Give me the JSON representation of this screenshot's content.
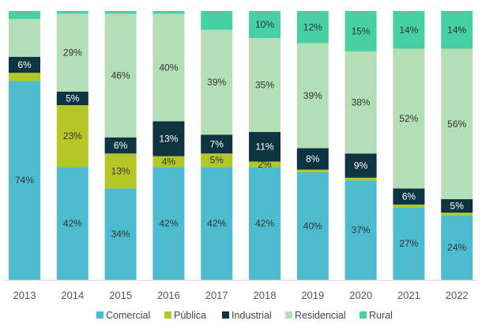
{
  "chart_data": {
    "type": "bar",
    "stacked": true,
    "percent": true,
    "title": "",
    "xlabel": "",
    "ylabel": "",
    "ylim": [
      0,
      100
    ],
    "grid": false,
    "legend_position": "bottom",
    "categories": [
      "2013",
      "2014",
      "2015",
      "2016",
      "2017",
      "2018",
      "2019",
      "2020",
      "2021",
      "2022"
    ],
    "series": [
      {
        "name": "Comercial",
        "color": "#4dbccf",
        "values": [
          74,
          42,
          34,
          42,
          42,
          42,
          40,
          37,
          27,
          24
        ],
        "labels": [
          "74%",
          "42%",
          "34%",
          "42%",
          "42%",
          "42%",
          "40%",
          "37%",
          "27%",
          "24%"
        ]
      },
      {
        "name": "Pública",
        "color": "#b5c727",
        "values": [
          3,
          23,
          13,
          4,
          5,
          2,
          1,
          1,
          1,
          1
        ],
        "labels": [
          "",
          "23%",
          "13%",
          "4%",
          "5%",
          "2%",
          "",
          "",
          "",
          ""
        ]
      },
      {
        "name": "Industrial",
        "color": "#0d3440",
        "values": [
          6,
          5,
          6,
          13,
          7,
          11,
          8,
          9,
          6,
          5
        ],
        "labels": [
          "6%",
          "5%",
          "6%",
          "13%",
          "7%",
          "11%",
          "8%",
          "9%",
          "6%",
          "5%"
        ]
      },
      {
        "name": "Residencial",
        "color": "#b4dfb6",
        "values": [
          14,
          29,
          46,
          40,
          39,
          35,
          39,
          38,
          52,
          56
        ],
        "labels": [
          "",
          "29%",
          "46%",
          "40%",
          "39%",
          "35%",
          "39%",
          "38%",
          "52%",
          "56%"
        ]
      },
      {
        "name": "Rural",
        "color": "#47d0a3",
        "values": [
          3,
          1,
          1,
          1,
          7,
          10,
          12,
          15,
          14,
          14
        ],
        "labels": [
          "",
          "",
          "",
          "",
          "",
          "10%",
          "12%",
          "15%",
          "14%",
          "14%"
        ]
      }
    ]
  }
}
